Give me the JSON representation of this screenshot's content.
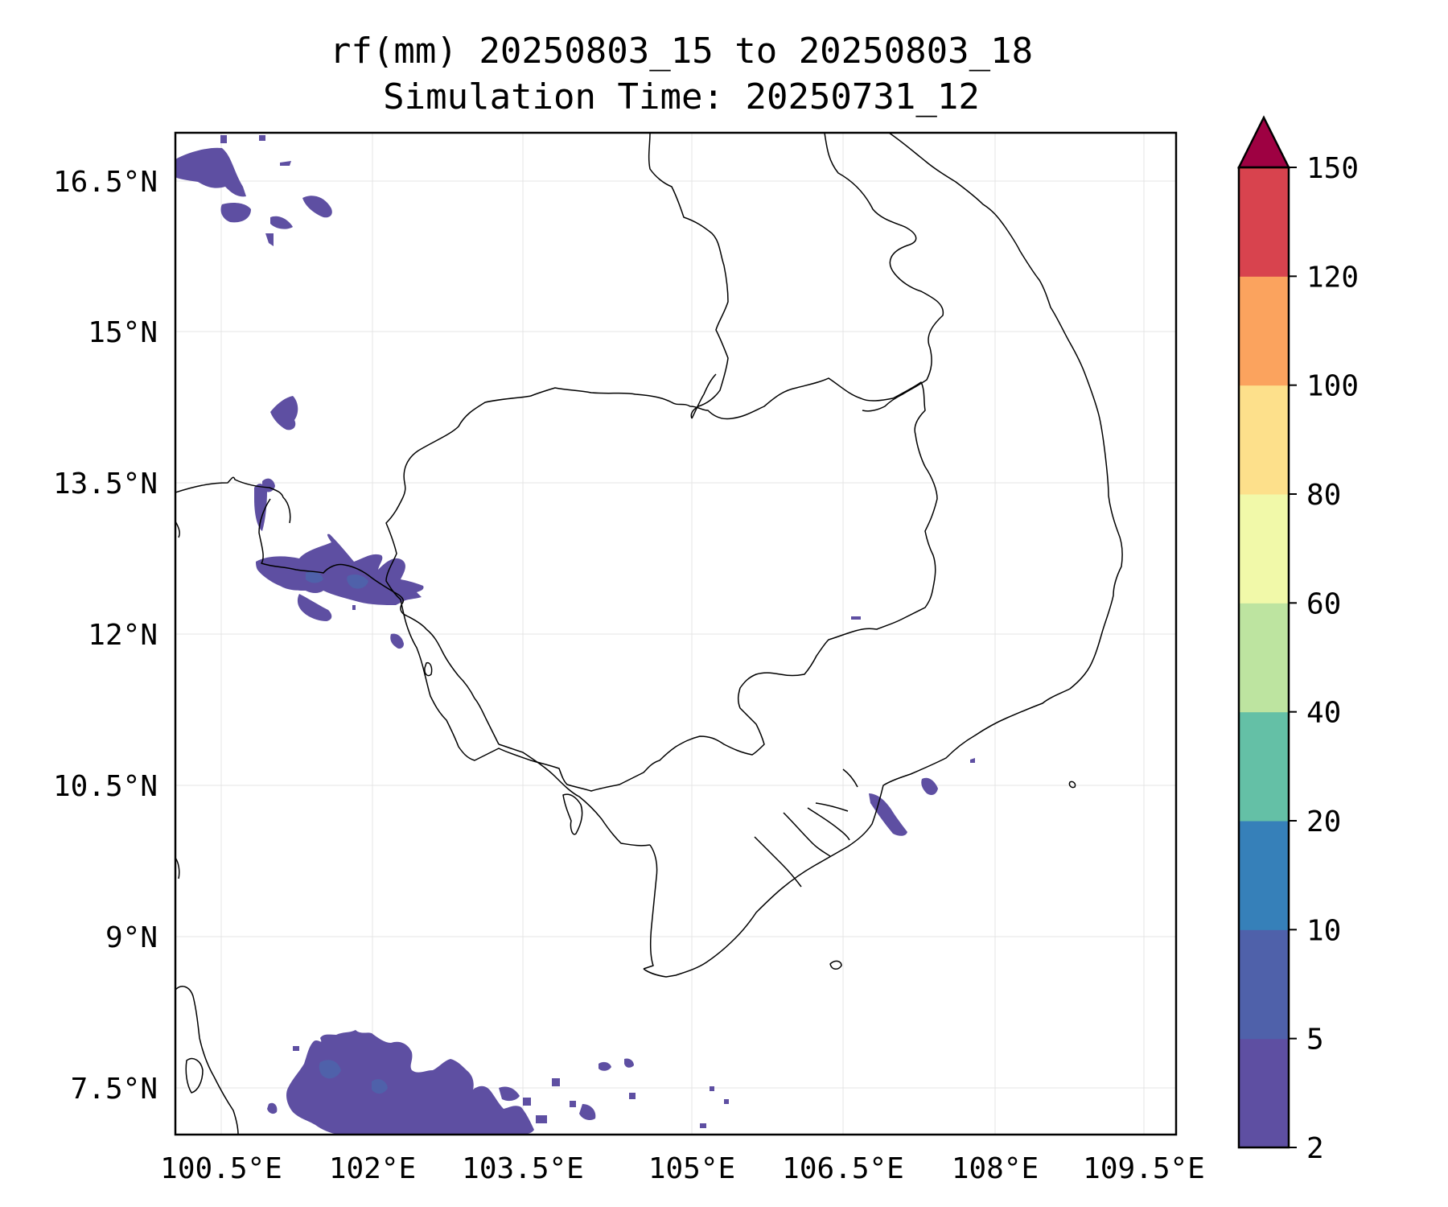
{
  "title": {
    "line1": "rf(mm) 20250803_15 to 20250803_18",
    "line2": "Simulation Time: 20250731_12"
  },
  "map": {
    "x_ticks": [
      "100.5°E",
      "102°E",
      "103.5°E",
      "105°E",
      "106.5°E",
      "108°E",
      "109.5°E"
    ],
    "y_ticks": [
      "16.5°N",
      "15°N",
      "13.5°N",
      "12°N",
      "10.5°N",
      "9°N",
      "7.5°N"
    ],
    "grid": true,
    "background": "#ffffff",
    "border_color": "#000000",
    "rain_regions": [
      {
        "name": "north-west-cells",
        "category": "2-5"
      },
      {
        "name": "gulf-of-thailand-cluster",
        "category": "5-10"
      },
      {
        "name": "mekong-delta-coast",
        "category": "2-5"
      },
      {
        "name": "south-sea-cluster",
        "category": "2-5"
      }
    ]
  },
  "colorbar": {
    "levels": [
      "2",
      "5",
      "10",
      "20",
      "40",
      "60",
      "80",
      "100",
      "120",
      "150"
    ],
    "colors": [
      "#5e4fa2",
      "#4f61aa",
      "#3680b9",
      "#64c0a6",
      "#bde4a0",
      "#f1f9a9",
      "#fde08b",
      "#fba35e",
      "#d8434e",
      "#9e0142"
    ],
    "extend": "max"
  }
}
